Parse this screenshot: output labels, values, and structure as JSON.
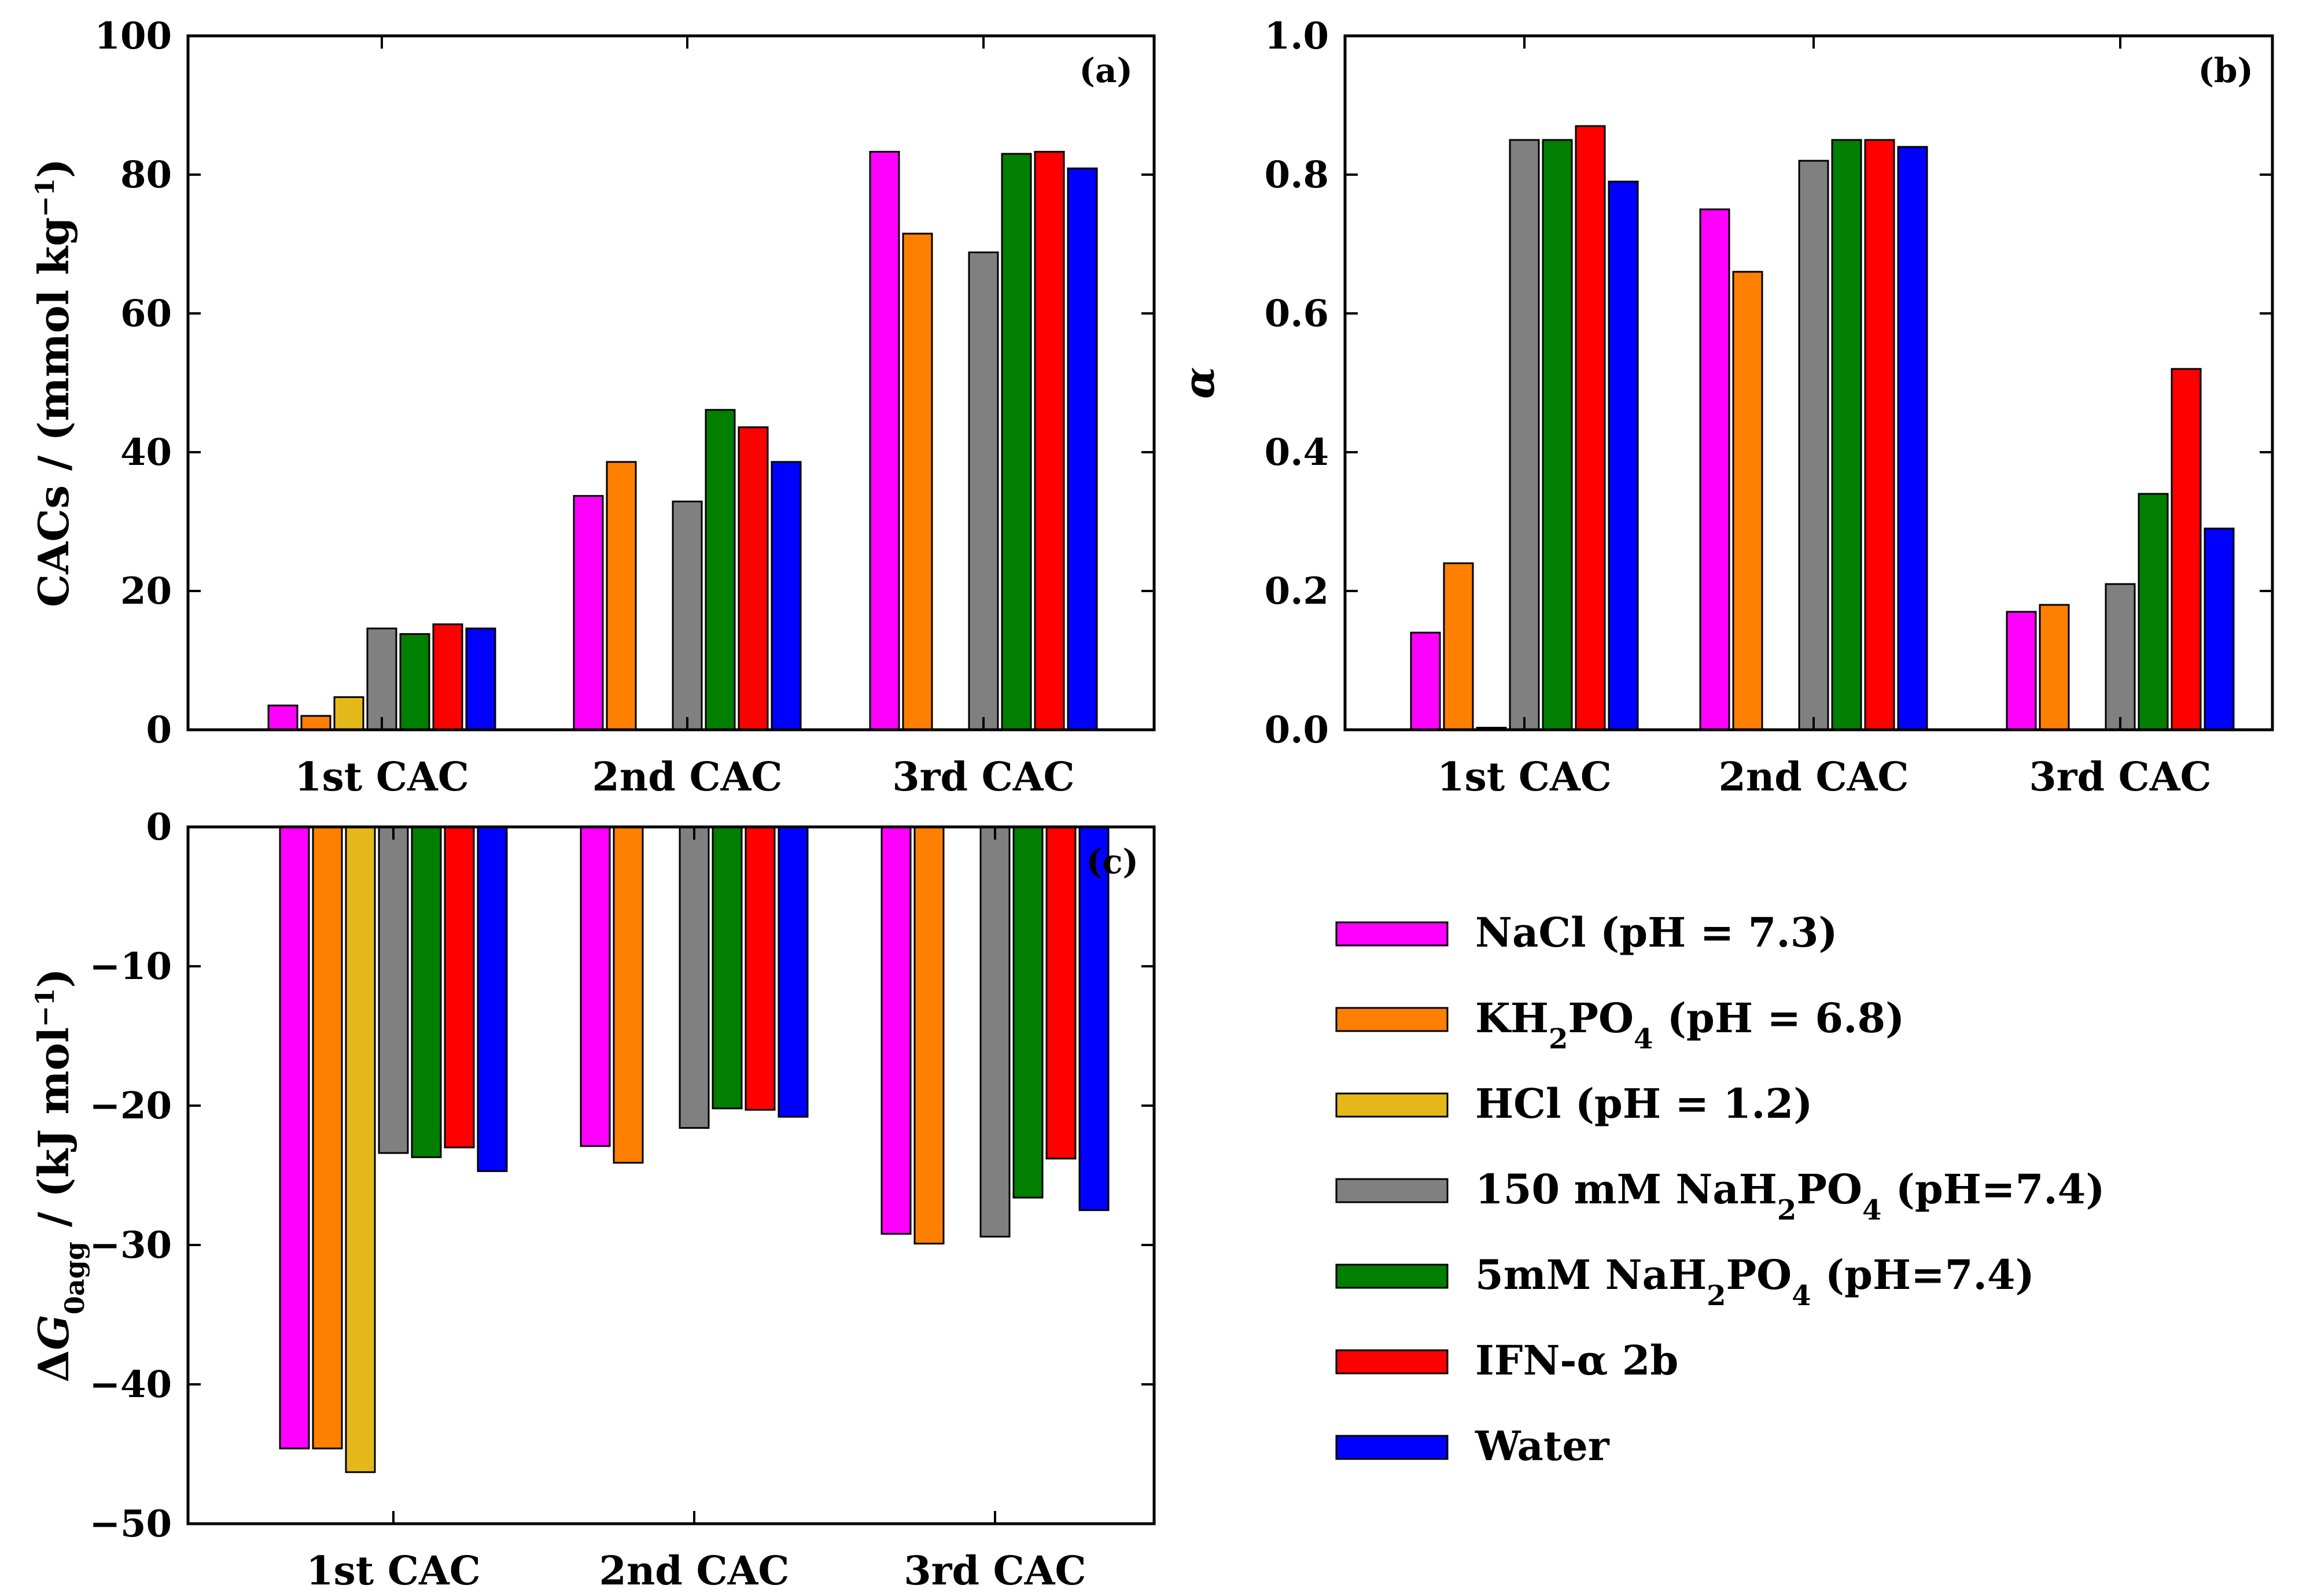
{
  "legend": {
    "items": [
      {
        "key": "nacl",
        "label": "NaCl (pH = 7.3)",
        "color": "#ff00ff"
      },
      {
        "key": "kh2po4",
        "label": "KH2PO4 (pH = 6.8)",
        "color": "#ff8000"
      },
      {
        "key": "hcl",
        "label": "HCl (pH = 1.2)",
        "color": "#e5b81a"
      },
      {
        "key": "nah2po4_150",
        "label": "150 mM NaH2PO4 (pH=7.4)",
        "color": "#808080"
      },
      {
        "key": "nah2po4_5",
        "label": "5mM NaH2PO4 (pH=7.4)",
        "color": "#007f00"
      },
      {
        "key": "ifn",
        "label": "IFN-α 2b",
        "color": "#ff0000"
      },
      {
        "key": "water",
        "label": "Water",
        "color": "#0000ff"
      }
    ]
  },
  "chart_data": [
    {
      "panel": "a",
      "type": "bar",
      "tag": "(a)",
      "ylabel": "CACs / (mmol kg−1)",
      "ylabel_main": "CACs / (mmol kg",
      "ylabel_sup": "−1",
      "ylabel_close": ")",
      "ylim": [
        0,
        100
      ],
      "yticks": [
        0,
        20,
        40,
        60,
        80,
        100
      ],
      "ytick_labels": [
        "0",
        "20",
        "40",
        "60",
        "80",
        "100"
      ],
      "categories": [
        "1st CAC",
        "2nd CAC",
        "3rd CAC"
      ],
      "series": [
        {
          "name": "NaCl (pH = 7.3)",
          "values": [
            3.5,
            33.7,
            83.3
          ]
        },
        {
          "name": "KH2PO4 (pH = 6.8)",
          "values": [
            2.0,
            38.6,
            71.5
          ]
        },
        {
          "name": "HCl (pH = 1.2)",
          "values": [
            4.7,
            null,
            null
          ]
        },
        {
          "name": "150 mM NaH2PO4 (pH=7.4)",
          "values": [
            14.6,
            32.9,
            68.8
          ]
        },
        {
          "name": "5mM NaH2PO4 (pH=7.4)",
          "values": [
            13.8,
            46.1,
            83.0
          ]
        },
        {
          "name": "IFN-α 2b",
          "values": [
            15.2,
            43.6,
            83.3
          ]
        },
        {
          "name": "Water",
          "values": [
            14.6,
            38.6,
            80.9
          ]
        }
      ]
    },
    {
      "panel": "b",
      "type": "bar",
      "tag": "(b)",
      "ylabel": "α",
      "ylim": [
        0,
        1.0
      ],
      "yticks": [
        0,
        0.2,
        0.4,
        0.6,
        0.8,
        1.0
      ],
      "ytick_labels": [
        "0.0",
        "0.2",
        "0.4",
        "0.6",
        "0.8",
        "1.0"
      ],
      "categories": [
        "1st CAC",
        "2nd CAC",
        "3rd CAC"
      ],
      "series": [
        {
          "name": "NaCl (pH = 7.3)",
          "values": [
            0.14,
            0.75,
            0.17
          ]
        },
        {
          "name": "KH2PO4 (pH = 6.8)",
          "values": [
            0.24,
            0.66,
            0.18
          ]
        },
        {
          "name": "HCl (pH = 1.2)",
          "values": [
            0.003,
            null,
            null
          ]
        },
        {
          "name": "150 mM NaH2PO4 (pH=7.4)",
          "values": [
            0.85,
            0.82,
            0.21
          ]
        },
        {
          "name": "5mM NaH2PO4 (pH=7.4)",
          "values": [
            0.85,
            0.85,
            0.34
          ]
        },
        {
          "name": "IFN-α 2b",
          "values": [
            0.87,
            0.85,
            0.52
          ]
        },
        {
          "name": "Water",
          "values": [
            0.79,
            0.84,
            0.29
          ]
        }
      ]
    },
    {
      "panel": "c",
      "type": "bar",
      "tag": "(c)",
      "ylabel": "ΔG0agg / (kJ mol−1)",
      "ylim": [
        -50,
        0
      ],
      "yticks": [
        0,
        -10,
        -20,
        -30,
        -40,
        -50
      ],
      "ytick_labels": [
        "0",
        "−10",
        "−20",
        "−30",
        "−40",
        "−50"
      ],
      "categories": [
        "1st CAC",
        "2nd CAC",
        "3rd CAC"
      ],
      "series": [
        {
          "name": "NaCl (pH = 7.3)",
          "values": [
            -44.6,
            -22.9,
            -29.2
          ]
        },
        {
          "name": "KH2PO4 (pH = 6.8)",
          "values": [
            -44.6,
            -24.1,
            -29.9
          ]
        },
        {
          "name": "HCl (pH = 1.2)",
          "values": [
            -46.3,
            null,
            null
          ]
        },
        {
          "name": "150 mM NaH2PO4 (pH=7.4)",
          "values": [
            -23.4,
            -21.6,
            -29.4
          ]
        },
        {
          "name": "5mM NaH2PO4 (pH=7.4)",
          "values": [
            -23.7,
            -20.2,
            -26.6
          ]
        },
        {
          "name": "IFN-α 2b",
          "values": [
            -23.0,
            -20.3,
            -23.8
          ]
        },
        {
          "name": "Water",
          "values": [
            -24.7,
            -20.8,
            -27.5
          ]
        }
      ]
    }
  ]
}
